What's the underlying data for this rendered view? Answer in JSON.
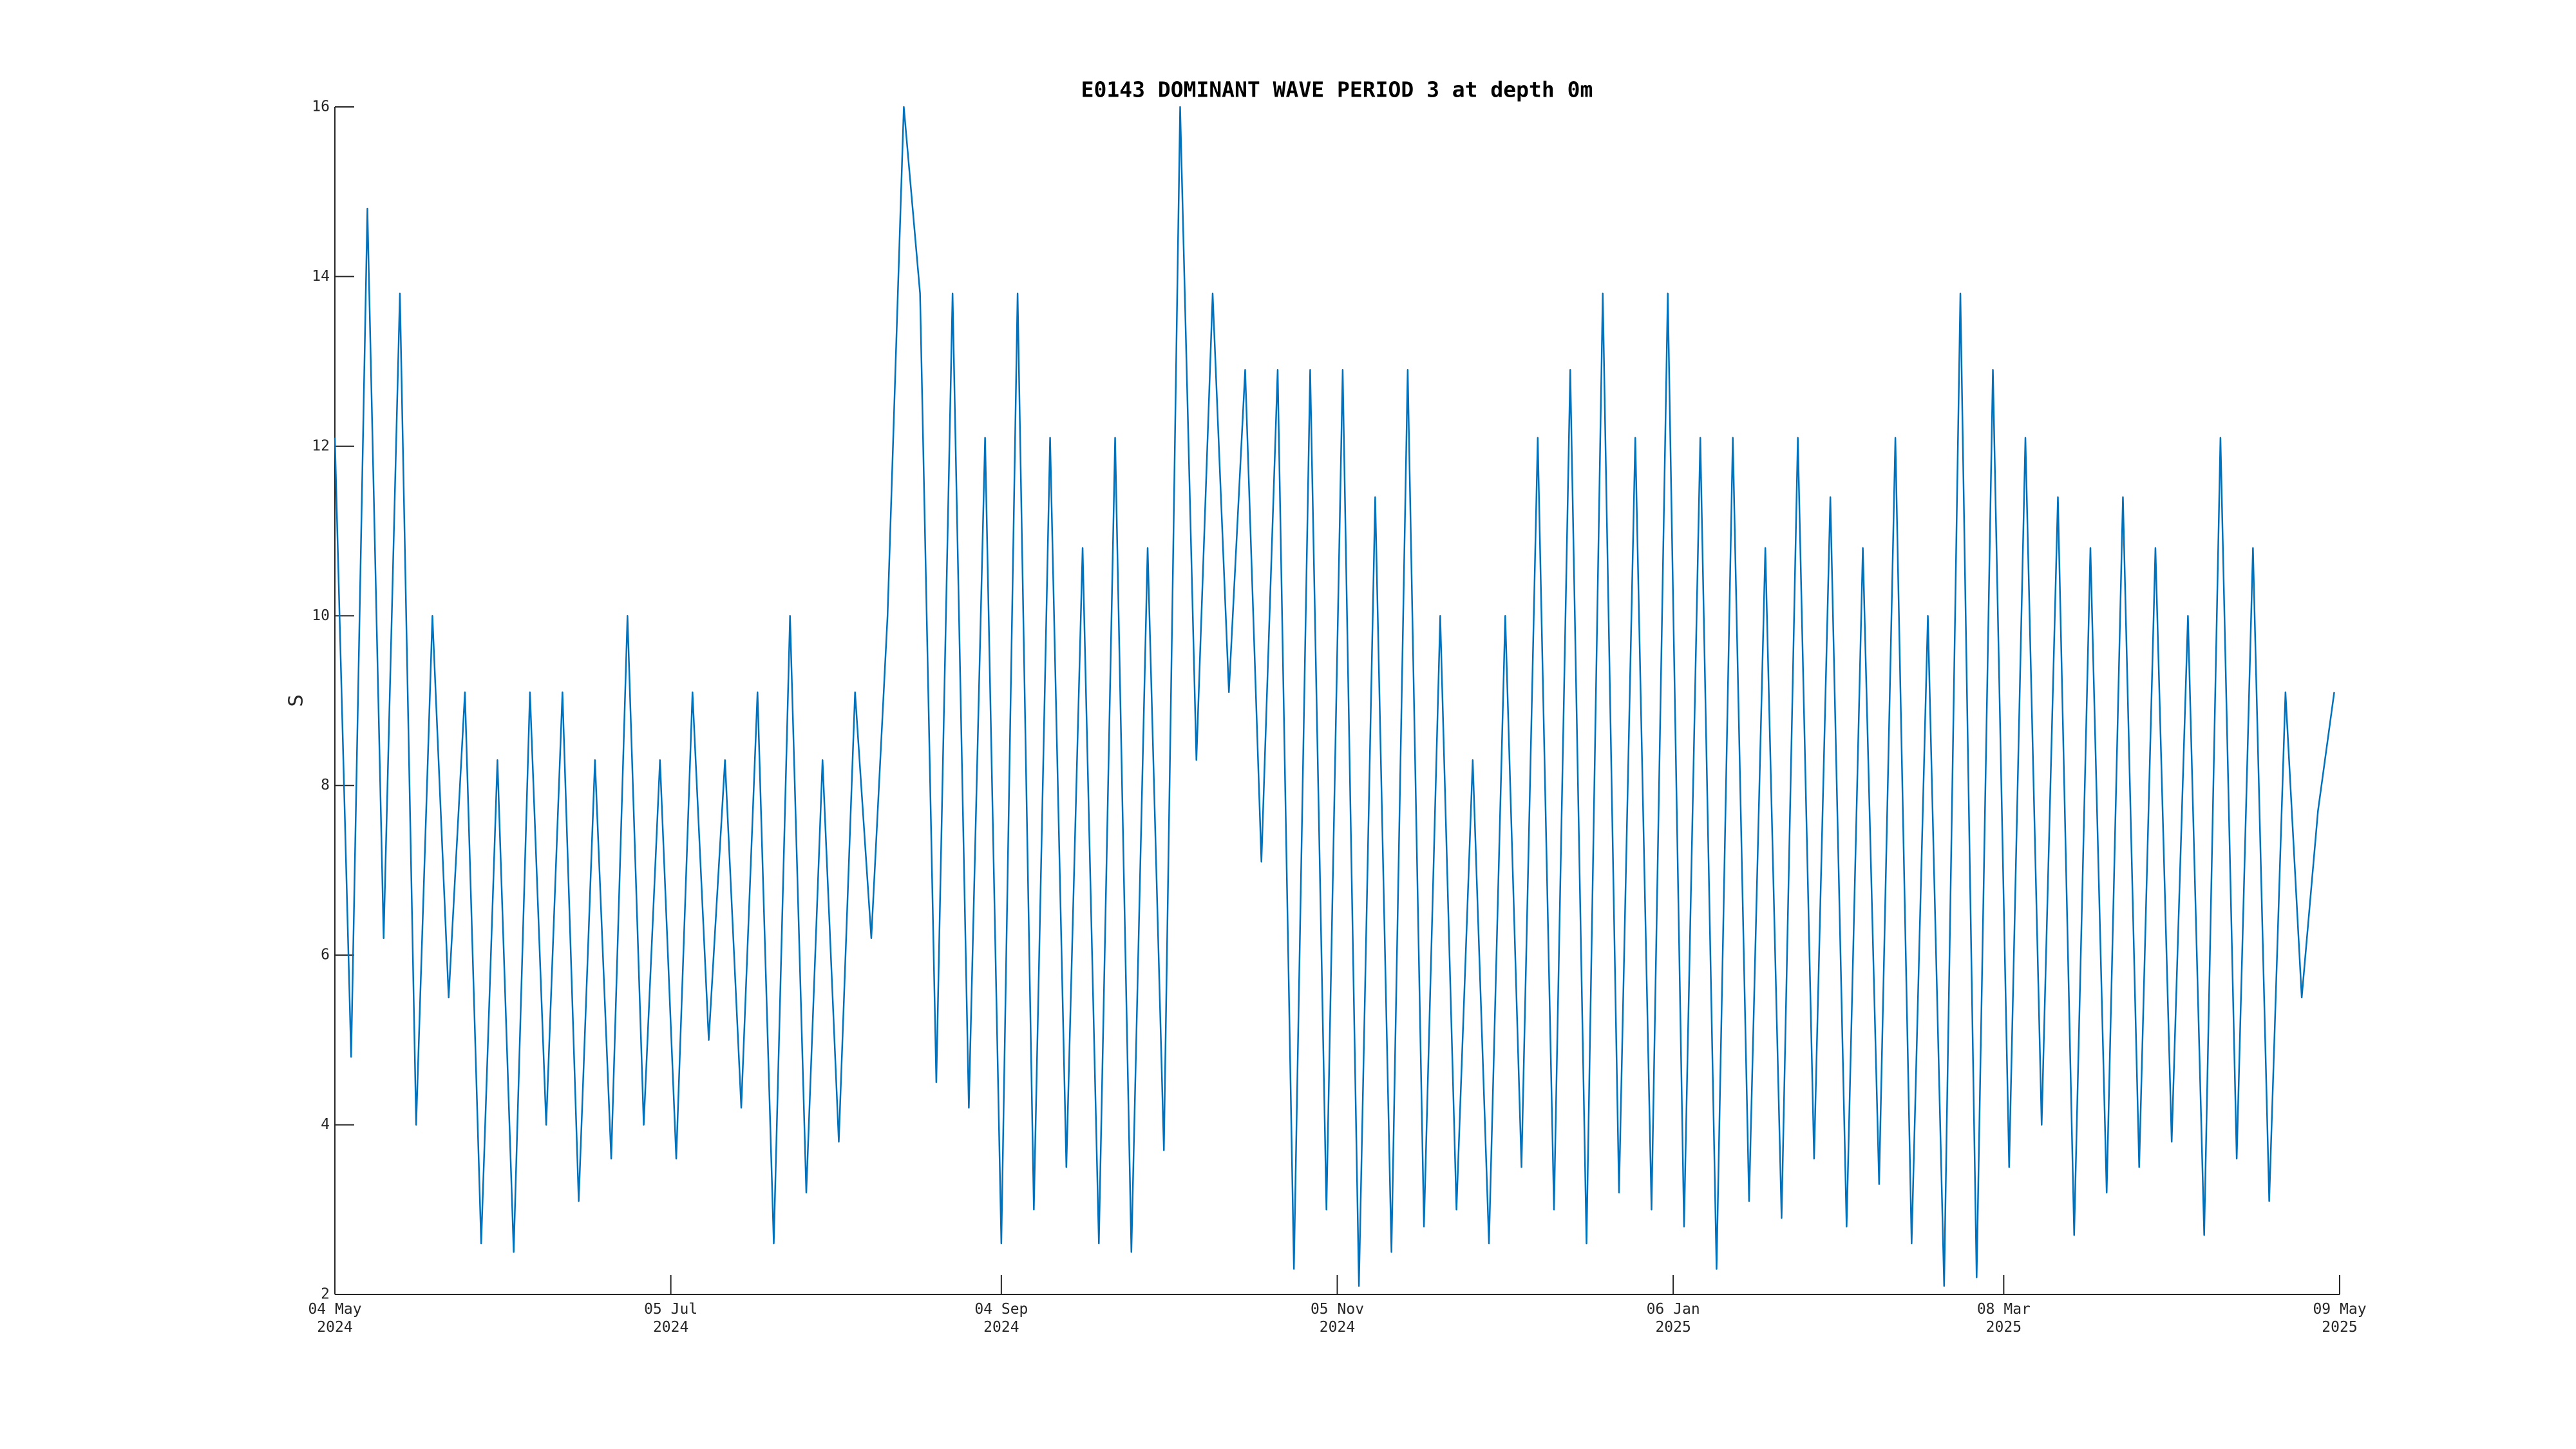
{
  "chart_data": {
    "type": "line",
    "title": "E0143 DOMINANT WAVE PERIOD 3 at depth 0m",
    "y_label": "S",
    "x": [
      "2024-05-04",
      "2024-05-07",
      "2024-05-10",
      "2024-05-13",
      "2024-05-16",
      "2024-05-19",
      "2024-05-22",
      "2024-05-25",
      "2024-05-28",
      "2024-05-31",
      "2024-06-03",
      "2024-06-06",
      "2024-06-09",
      "2024-06-12",
      "2024-06-15",
      "2024-06-18",
      "2024-06-21",
      "2024-06-24",
      "2024-06-27",
      "2024-06-30",
      "2024-07-03",
      "2024-07-06",
      "2024-07-09",
      "2024-07-12",
      "2024-07-15",
      "2024-07-18",
      "2024-07-21",
      "2024-07-24",
      "2024-07-27",
      "2024-07-30",
      "2024-08-02",
      "2024-08-05",
      "2024-08-08",
      "2024-08-11",
      "2024-08-14",
      "2024-08-17",
      "2024-08-20",
      "2024-08-23",
      "2024-08-26",
      "2024-08-29",
      "2024-09-01",
      "2024-09-04",
      "2024-09-07",
      "2024-09-10",
      "2024-09-13",
      "2024-09-16",
      "2024-09-19",
      "2024-09-22",
      "2024-09-25",
      "2024-09-28",
      "2024-10-01",
      "2024-10-04",
      "2024-10-07",
      "2024-10-10",
      "2024-10-13",
      "2024-10-16",
      "2024-10-19",
      "2024-10-22",
      "2024-10-25",
      "2024-10-28",
      "2024-10-31",
      "2024-11-03",
      "2024-11-06",
      "2024-11-09",
      "2024-11-12",
      "2024-11-15",
      "2024-11-18",
      "2024-11-21",
      "2024-11-24",
      "2024-11-27",
      "2024-11-30",
      "2024-12-03",
      "2024-12-06",
      "2024-12-09",
      "2024-12-12",
      "2024-12-15",
      "2024-12-18",
      "2024-12-21",
      "2024-12-24",
      "2024-12-27",
      "2024-12-30",
      "2025-01-02",
      "2025-01-05",
      "2025-01-08",
      "2025-01-11",
      "2025-01-14",
      "2025-01-17",
      "2025-01-20",
      "2025-01-23",
      "2025-01-26",
      "2025-01-29",
      "2025-02-01",
      "2025-02-04",
      "2025-02-07",
      "2025-02-10",
      "2025-02-13",
      "2025-02-16",
      "2025-02-19",
      "2025-02-22",
      "2025-02-25",
      "2025-02-28",
      "2025-03-03",
      "2025-03-06",
      "2025-03-09",
      "2025-03-12",
      "2025-03-15",
      "2025-03-18",
      "2025-03-21",
      "2025-03-24",
      "2025-03-27",
      "2025-03-30",
      "2025-04-02",
      "2025-04-05",
      "2025-04-08",
      "2025-04-11",
      "2025-04-14",
      "2025-04-17",
      "2025-04-20",
      "2025-04-23",
      "2025-04-26",
      "2025-04-29",
      "2025-05-02",
      "2025-05-05",
      "2025-05-08"
    ],
    "series": [
      {
        "color": "#0072bd",
        "values": [
          12.1,
          4.8,
          14.8,
          6.2,
          13.8,
          4.0,
          10.0,
          5.5,
          9.1,
          2.6,
          8.3,
          2.5,
          9.1,
          4.0,
          9.1,
          3.1,
          8.3,
          3.6,
          10.0,
          4.0,
          8.3,
          3.6,
          9.1,
          5.0,
          8.3,
          4.2,
          9.1,
          2.6,
          10.0,
          3.2,
          8.3,
          3.8,
          9.1,
          6.2,
          10.0,
          16.0,
          13.8,
          4.5,
          13.8,
          4.2,
          12.1,
          2.6,
          13.8,
          3.0,
          12.1,
          3.5,
          10.8,
          2.6,
          12.1,
          2.5,
          10.8,
          3.7,
          16.0,
          8.3,
          13.8,
          9.1,
          12.9,
          7.1,
          12.9,
          2.3,
          12.9,
          3.0,
          12.9,
          2.1,
          11.4,
          2.5,
          12.9,
          2.8,
          10.0,
          3.0,
          8.3,
          2.6,
          10.0,
          3.5,
          12.1,
          3.0,
          12.9,
          2.6,
          13.8,
          3.2,
          12.1,
          3.0,
          13.8,
          2.8,
          12.1,
          2.3,
          12.1,
          3.1,
          10.8,
          2.9,
          12.1,
          3.6,
          11.4,
          2.8,
          10.8,
          3.3,
          12.1,
          2.6,
          10.0,
          2.1,
          13.8,
          2.2,
          12.9,
          3.5,
          12.1,
          4.0,
          11.4,
          2.7,
          10.8,
          3.2,
          11.4,
          3.5,
          10.8,
          3.8,
          10.0,
          2.7,
          12.1,
          3.6,
          10.8,
          3.1,
          9.1,
          5.5,
          7.7,
          9.1
        ]
      }
    ],
    "xlim": [
      "2024-05-04",
      "2025-05-09"
    ],
    "xticks": [
      {
        "value": "2024-05-04",
        "label": "04 May 2024"
      },
      {
        "value": "2024-07-05",
        "label": "05 Jul 2024"
      },
      {
        "value": "2024-09-04",
        "label": "04 Sep 2024"
      },
      {
        "value": "2024-11-05",
        "label": "05 Nov 2024"
      },
      {
        "value": "2025-01-06",
        "label": "06 Jan 2025"
      },
      {
        "value": "2025-03-08",
        "label": "08 Mar 2025"
      },
      {
        "value": "2025-05-09",
        "label": "09 May 2025"
      }
    ],
    "ylim": [
      2,
      16
    ],
    "yticks": [
      2,
      4,
      6,
      8,
      10,
      12,
      14,
      16
    ],
    "grid": false
  }
}
